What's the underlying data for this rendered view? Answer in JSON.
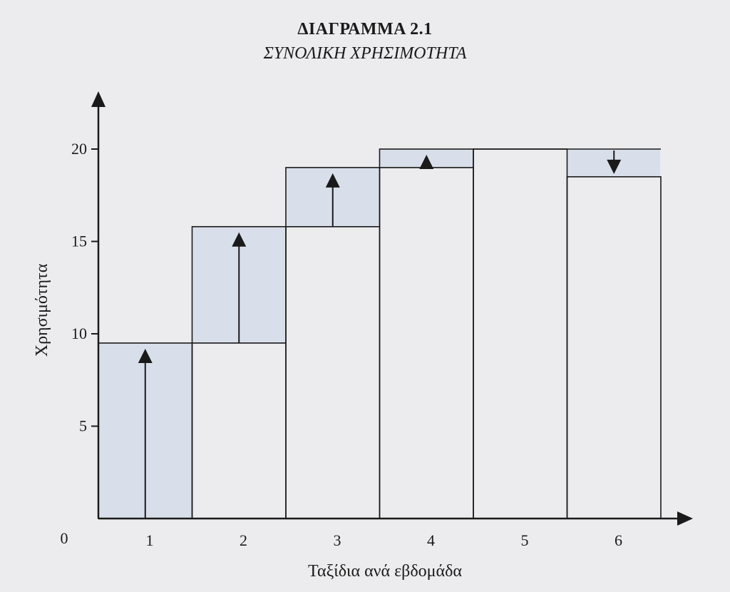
{
  "chart_data": {
    "type": "bar",
    "title": "ΔΙΑΓΡΑΜΜΑ 2.1",
    "subtitle": "ΣΥΝΟΛΙΚΗ ΧΡΗΣΙΜΟΤΗΤΑ",
    "xlabel": "Ταξίδια ανά εβδομάδα",
    "ylabel": "Χρησιμότητα",
    "origin_label": "0",
    "categories": [
      "1",
      "2",
      "3",
      "4",
      "5",
      "6"
    ],
    "values": [
      9.5,
      15.8,
      19,
      20,
      20,
      18.5
    ],
    "previous_values": [
      0,
      9.5,
      15.8,
      19,
      20,
      20
    ],
    "marginal_arrows": [
      "up",
      "up",
      "up",
      "up",
      "none",
      "down"
    ],
    "yticks": [
      5,
      10,
      15,
      20
    ],
    "ylim": [
      0,
      23
    ],
    "xlim": [
      0,
      6.6
    ],
    "grid": false,
    "colors": {
      "fill": "#d9dfea",
      "stroke": "#1a1a1a",
      "background": "#ececee"
    }
  }
}
